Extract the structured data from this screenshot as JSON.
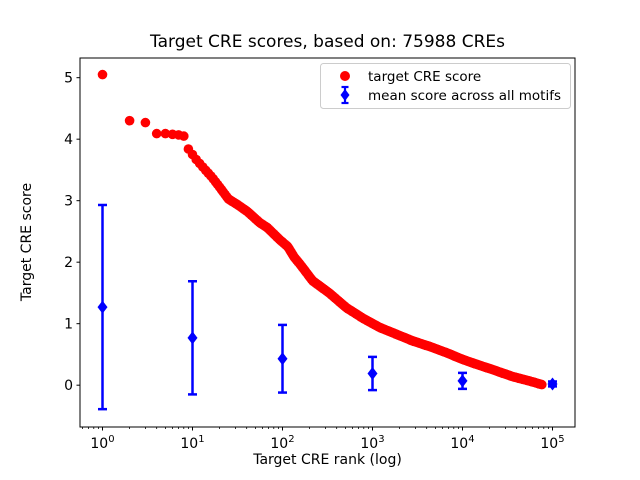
{
  "figure": {
    "background": "#ffffff"
  },
  "chart_data": {
    "type": "scatter",
    "title": "Target CRE scores, based on: 75988 CREs",
    "xlabel": "Target CRE rank (log)",
    "ylabel": "Target CRE score",
    "x_scale": "log",
    "xlim_log10": [
      -0.25,
      5.25
    ],
    "ylim": [
      -0.68,
      5.32
    ],
    "xticks": [
      1,
      10,
      100,
      1000,
      10000,
      100000
    ],
    "xtick_exponents": [
      0,
      1,
      2,
      3,
      4,
      5
    ],
    "yticks": [
      0,
      1,
      2,
      3,
      4,
      5
    ],
    "grid": false,
    "series": [
      {
        "name": "target CRE score",
        "color": "#ff0000",
        "marker": "circle",
        "n_points_depicted": 75988,
        "curve_control_points": [
          [
            1,
            5.05
          ],
          [
            2,
            4.3
          ],
          [
            3,
            4.27
          ],
          [
            4,
            4.09
          ],
          [
            5,
            4.09
          ],
          [
            6,
            4.08
          ],
          [
            7,
            4.07
          ],
          [
            8,
            4.05
          ],
          [
            9,
            3.84
          ],
          [
            11,
            3.67
          ],
          [
            13.5,
            3.52
          ],
          [
            16.5,
            3.38
          ],
          [
            20,
            3.22
          ],
          [
            25,
            3.03
          ],
          [
            32,
            2.93
          ],
          [
            41,
            2.82
          ],
          [
            55,
            2.65
          ],
          [
            68,
            2.56
          ],
          [
            94,
            2.36
          ],
          [
            115,
            2.25
          ],
          [
            135,
            2.08
          ],
          [
            160,
            1.95
          ],
          [
            215,
            1.7
          ],
          [
            330,
            1.5
          ],
          [
            512,
            1.26
          ],
          [
            800,
            1.08
          ],
          [
            1200,
            0.94
          ],
          [
            1900,
            0.82
          ],
          [
            2800,
            0.72
          ],
          [
            4500,
            0.62
          ],
          [
            6600,
            0.53
          ],
          [
            10000,
            0.42
          ],
          [
            15000,
            0.33
          ],
          [
            22000,
            0.25
          ],
          [
            36000,
            0.14
          ],
          [
            55000,
            0.07
          ],
          [
            75988,
            0.01
          ]
        ]
      },
      {
        "name": "mean score across all motifs",
        "color": "#0000ff",
        "marker": "diamond",
        "points": [
          {
            "rank": 1,
            "mean": 1.27,
            "err": 1.66
          },
          {
            "rank": 10,
            "mean": 0.77,
            "err": 0.92
          },
          {
            "rank": 100,
            "mean": 0.43,
            "err": 0.55
          },
          {
            "rank": 1000,
            "mean": 0.19,
            "err": 0.27
          },
          {
            "rank": 10000,
            "mean": 0.07,
            "err": 0.13
          },
          {
            "rank": 100000,
            "mean": 0.02,
            "err": 0.04
          }
        ]
      }
    ],
    "legend": {
      "position": "upper right",
      "border_color": "#cccccc",
      "background": "#ffffff",
      "entries": [
        "target CRE score",
        "mean score across all motifs"
      ]
    }
  }
}
